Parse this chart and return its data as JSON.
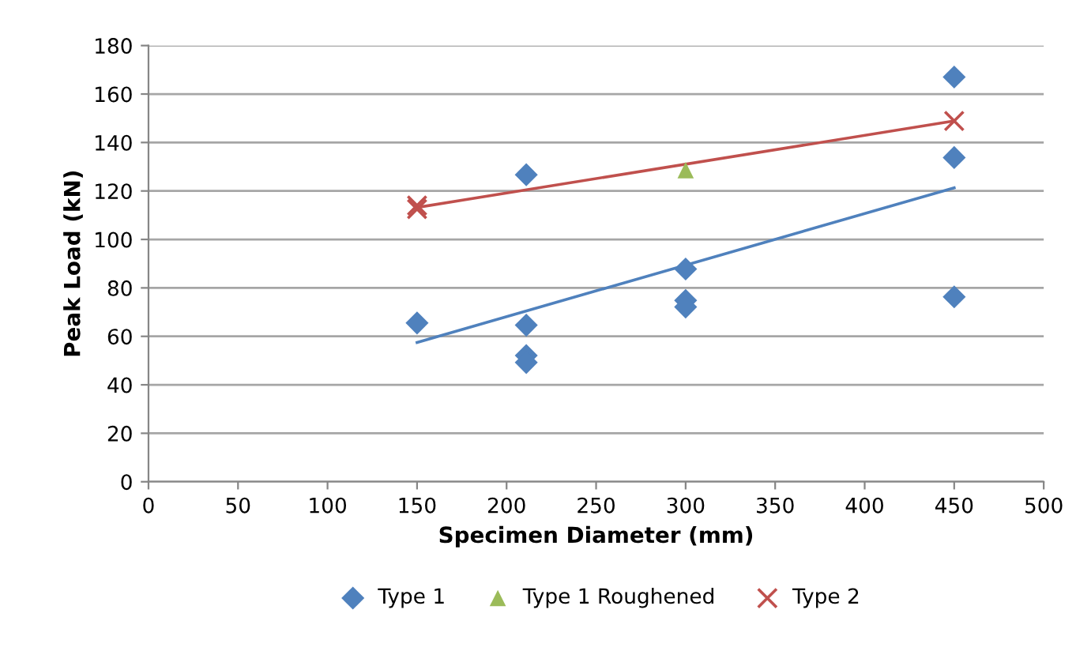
{
  "chart_data": {
    "type": "scatter",
    "xlabel": "Specimen Diameter (mm)",
    "ylabel": "Peak Load (kN)",
    "xlim": [
      0,
      500
    ],
    "xticks": [
      0,
      50,
      100,
      150,
      200,
      250,
      300,
      350,
      400,
      450,
      500
    ],
    "ylim": [
      0,
      180
    ],
    "yticks": [
      0,
      20,
      40,
      60,
      80,
      100,
      120,
      140,
      160,
      180
    ],
    "grid": "y",
    "legend": "bottom",
    "series": [
      {
        "name": "Type 1",
        "color": "#4f81bd",
        "marker": "diamond",
        "x": [
          150,
          211,
          211,
          211,
          211,
          300,
          300,
          300,
          450,
          450,
          450
        ],
        "values": [
          65.5,
          126.7,
          64.6,
          52.1,
          49.2,
          87.8,
          74.8,
          72.1,
          167,
          133.8,
          76.3
        ]
      },
      {
        "name": "Type 1 Roughened",
        "color": "#9bbb59",
        "marker": "triangle",
        "x": [
          300
        ],
        "values": [
          128.6
        ]
      },
      {
        "name": "Type 2",
        "color": "#c0504d",
        "marker": "cross",
        "x": [
          150,
          150,
          450
        ],
        "values": [
          114,
          112.5,
          148.9
        ]
      },
      {
        "type": "line",
        "color": "#4f81bd",
        "marker": "none",
        "x": [
          150,
          450
        ],
        "values": [
          57.5,
          121.3
        ]
      },
      {
        "type": "line",
        "color": "#c0504d",
        "marker": "none",
        "x": [
          150,
          450
        ],
        "values": [
          113.2,
          148.9
        ]
      }
    ]
  }
}
